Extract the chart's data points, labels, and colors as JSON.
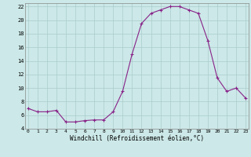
{
  "x": [
    0,
    1,
    2,
    3,
    4,
    5,
    6,
    7,
    8,
    9,
    10,
    11,
    12,
    13,
    14,
    15,
    16,
    17,
    18,
    19,
    20,
    21,
    22,
    23
  ],
  "y": [
    7,
    6.5,
    6.5,
    6.7,
    5,
    5,
    5.2,
    5.3,
    5.3,
    6.5,
    9.5,
    15,
    19.5,
    21,
    21.5,
    22,
    22,
    21.5,
    21,
    17,
    11.5,
    9.5,
    10,
    8.5
  ],
  "xlabel": "Windchill (Refroidissement éolien,°C)",
  "yticks": [
    4,
    6,
    8,
    10,
    12,
    14,
    16,
    18,
    20,
    22
  ],
  "xticks": [
    0,
    1,
    2,
    3,
    4,
    5,
    6,
    7,
    8,
    9,
    10,
    11,
    12,
    13,
    14,
    15,
    16,
    17,
    18,
    19,
    20,
    21,
    22,
    23
  ],
  "line_color": "#882288",
  "bg_color": "#cce8e8",
  "grid_color": "#aacccc",
  "marker": "+"
}
